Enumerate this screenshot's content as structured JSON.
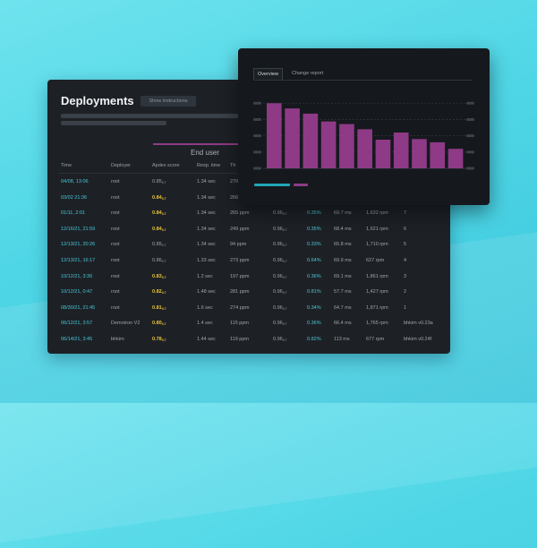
{
  "deployments": {
    "title": "Deployments",
    "show_instructions": "Show instructions",
    "end_user_label": "End user",
    "columns": [
      "Time",
      "Deployer",
      "Apdex score",
      "Resp. time",
      "Th"
    ],
    "rows": [
      {
        "time": "04/08, 13:06",
        "deployer": "root",
        "apdex": "0.85",
        "apdex_sub": "0.7",
        "apdex_hl": false,
        "resp": "1.34 sec",
        "thr": "270",
        "c6": "",
        "c7": "",
        "c8": "",
        "c9": "",
        "c10": ""
      },
      {
        "time": "03/02 21:36",
        "deployer": "root",
        "apdex": "0.84",
        "apdex_sub": "0.7",
        "apdex_hl": true,
        "resp": "1.34 sec",
        "thr": "266",
        "c6": "",
        "c7": "",
        "c8": "",
        "c9": "",
        "c10": ""
      },
      {
        "time": "01/11, 2:01",
        "deployer": "root",
        "apdex": "0.84",
        "apdex_sub": "0.7",
        "apdex_hl": true,
        "resp": "1.34 sec",
        "thr": "265 ppm",
        "c6": "0.96",
        "c6_sub": "0.7",
        "c7": "0.35%",
        "c8": "69.7 ms",
        "c9": "1,632 rpm",
        "c10": "7"
      },
      {
        "time": "12/16/21, 21:59",
        "deployer": "root",
        "apdex": "0.84",
        "apdex_sub": "0.7",
        "apdex_hl": true,
        "resp": "1.34 sec",
        "thr": "249 ppm",
        "c6": "0.96",
        "c6_sub": "0.7",
        "c7": "0.35%",
        "c8": "68.4 ms",
        "c9": "1,621 rpm",
        "c10": "6"
      },
      {
        "time": "12/13/21, 20:26",
        "deployer": "root",
        "apdex": "0.85",
        "apdex_sub": "0.7",
        "apdex_hl": false,
        "resp": "1.34 sec",
        "thr": "94 ppm",
        "c6": "0.96",
        "c6_sub": "0.7",
        "c7": "0.33%",
        "c8": "65.8 ms",
        "c9": "1,710 rpm",
        "c10": "5"
      },
      {
        "time": "12/13/21, 16:17",
        "deployer": "root",
        "apdex": "0.86",
        "apdex_sub": "0.7",
        "apdex_hl": false,
        "resp": "1.33 sec",
        "thr": "273 ppm",
        "c6": "0.96",
        "c6_sub": "0.7",
        "c7": "0.64%",
        "c8": "69.9 ms",
        "c9": "627 rpm",
        "c10": "4"
      },
      {
        "time": "10/12/21, 3:36",
        "deployer": "root",
        "apdex": "0.83",
        "apdex_sub": "0.7",
        "apdex_hl": true,
        "resp": "1.2 sec",
        "thr": "197 ppm",
        "c6": "0.96",
        "c6_sub": "0.7",
        "c7": "0.36%",
        "c8": "69.1 ms",
        "c9": "1,861 rpm",
        "c10": "3"
      },
      {
        "time": "10/12/21, 0:47",
        "deployer": "root",
        "apdex": "0.82",
        "apdex_sub": "0.7",
        "apdex_hl": true,
        "resp": "1.48 sec",
        "thr": "281 ppm",
        "c6": "0.96",
        "c6_sub": "0.7",
        "c7": "0.81%",
        "c8": "57.7 ms",
        "c9": "1,427 rpm",
        "c10": "2"
      },
      {
        "time": "08/30/21, 21:45",
        "deployer": "root",
        "apdex": "0.81",
        "apdex_sub": "0.7",
        "apdex_hl": true,
        "resp": "1.6 sec",
        "thr": "274 ppm",
        "c6": "0.96",
        "c6_sub": "0.7",
        "c7": "0.34%",
        "c8": "64.7 ms",
        "c9": "1,871 rpm",
        "c10": "1"
      },
      {
        "time": "06/12/21, 3:57",
        "deployer": "Demotron V2",
        "apdex": "0.80",
        "apdex_sub": "0.7",
        "apdex_hl": true,
        "resp": "1.4 sec",
        "thr": "115 ppm",
        "c6": "0.96",
        "c6_sub": "0.7",
        "c7": "0.36%",
        "c8": "66.4 ms",
        "c9": "1,765 rpm",
        "c10": "bhkim v0.23a"
      },
      {
        "time": "06/14/21, 3:45",
        "deployer": "bhkim",
        "apdex": "0.78",
        "apdex_sub": "0.7",
        "apdex_hl": true,
        "resp": "1.44 sec",
        "thr": "119 ppm",
        "c6": "0.96",
        "c6_sub": "0.7",
        "c7": "0.82%",
        "c8": "113 ms",
        "c9": "677 rpm",
        "c10": "bhkim v0.24f"
      }
    ]
  },
  "chart_panel": {
    "tabs": [
      "Overview",
      "Change report"
    ],
    "active_tab": 0
  },
  "chart_data": {
    "type": "bar",
    "values": [
      100,
      92,
      84,
      72,
      68,
      60,
      44,
      55,
      45,
      40,
      30
    ],
    "ylim": [
      0,
      110
    ],
    "grid": true,
    "colors": {
      "bar": "#8e3a86",
      "legend_a": "#1fa7b8",
      "legend_b": "#8e3a86"
    }
  }
}
